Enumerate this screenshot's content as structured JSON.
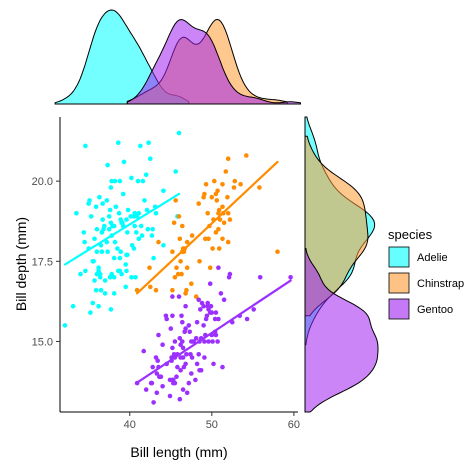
{
  "chart_data": {
    "type": "scatter",
    "xlabel": "Bill length (mm)",
    "ylabel": "Bill depth (mm)",
    "xlim": [
      31.5,
      60.5
    ],
    "ylim": [
      12.8,
      22.0
    ],
    "xticks": [
      "40",
      "50",
      "60"
    ],
    "yticks": [
      "15.0",
      "17.5",
      "20.0"
    ],
    "grid": false,
    "legend": {
      "title": "species",
      "position": "right"
    },
    "marginal_top": {
      "type": "density",
      "variable": "bill_length"
    },
    "marginal_right": {
      "type": "density",
      "variable": "bill_depth"
    },
    "series": [
      {
        "name": "Adelie",
        "color": "#00FFFF",
        "fill": "#00FFFF",
        "trend": {
          "x": [
            32.1,
            46.0
          ],
          "y": [
            17.4,
            19.6
          ]
        },
        "points": [
          [
            32.1,
            15.5
          ],
          [
            33.1,
            16.1
          ],
          [
            33.5,
            19.0
          ],
          [
            34.0,
            17.1
          ],
          [
            34.4,
            18.4
          ],
          [
            34.5,
            18.1
          ],
          [
            34.6,
            21.1
          ],
          [
            34.6,
            17.2
          ],
          [
            35.0,
            17.9
          ],
          [
            35.0,
            19.3
          ],
          [
            35.1,
            19.4
          ],
          [
            35.2,
            15.9
          ],
          [
            35.3,
            18.9
          ],
          [
            35.5,
            17.5
          ],
          [
            35.5,
            16.2
          ],
          [
            35.6,
            17.5
          ],
          [
            35.7,
            16.9
          ],
          [
            35.7,
            18.2
          ],
          [
            35.9,
            16.6
          ],
          [
            35.9,
            19.2
          ],
          [
            36.0,
            17.1
          ],
          [
            36.0,
            18.5
          ],
          [
            36.0,
            17.8
          ],
          [
            36.2,
            17.2
          ],
          [
            36.2,
            16.1
          ],
          [
            36.2,
            17.3
          ],
          [
            36.3,
            19.5
          ],
          [
            36.4,
            17.0
          ],
          [
            36.4,
            17.1
          ],
          [
            36.5,
            16.6
          ],
          [
            36.5,
            18.0
          ],
          [
            36.6,
            17.8
          ],
          [
            36.6,
            18.4
          ],
          [
            36.7,
            19.3
          ],
          [
            36.7,
            18.8
          ],
          [
            36.8,
            18.5
          ],
          [
            36.9,
            18.6
          ],
          [
            37.0,
            16.9
          ],
          [
            37.0,
            16.5
          ],
          [
            37.2,
            18.1
          ],
          [
            37.2,
            19.4
          ],
          [
            37.3,
            17.8
          ],
          [
            37.3,
            20.5
          ],
          [
            37.5,
            18.9
          ],
          [
            37.5,
            18.5
          ],
          [
            37.6,
            19.1
          ],
          [
            37.6,
            17.0
          ],
          [
            37.7,
            18.7
          ],
          [
            37.7,
            16.0
          ],
          [
            37.7,
            19.8
          ],
          [
            37.8,
            18.3
          ],
          [
            37.8,
            17.1
          ],
          [
            37.8,
            20.0
          ],
          [
            37.9,
            18.6
          ],
          [
            37.9,
            18.6
          ],
          [
            38.1,
            18.6
          ],
          [
            38.1,
            17.6
          ],
          [
            38.1,
            16.5
          ],
          [
            38.1,
            17.0
          ],
          [
            38.2,
            18.1
          ],
          [
            38.2,
            20.0
          ],
          [
            38.3,
            19.2
          ],
          [
            38.5,
            17.9
          ],
          [
            38.6,
            21.2
          ],
          [
            38.6,
            17.2
          ],
          [
            38.7,
            19.0
          ],
          [
            38.8,
            17.2
          ],
          [
            38.8,
            17.6
          ],
          [
            38.8,
            20.0
          ],
          [
            38.9,
            17.8
          ],
          [
            38.9,
            18.8
          ],
          [
            39.0,
            17.1
          ],
          [
            39.0,
            18.7
          ],
          [
            39.1,
            18.7
          ],
          [
            39.2,
            19.6
          ],
          [
            39.2,
            18.6
          ],
          [
            39.3,
            20.6
          ],
          [
            39.5,
            16.7
          ],
          [
            39.5,
            17.4
          ],
          [
            39.6,
            17.7
          ],
          [
            39.6,
            18.8
          ],
          [
            39.6,
            17.2
          ],
          [
            39.7,
            18.4
          ],
          [
            39.7,
            17.7
          ],
          [
            39.8,
            19.1
          ],
          [
            40.1,
            18.9
          ],
          [
            40.2,
            17.0
          ],
          [
            40.2,
            20.1
          ],
          [
            40.3,
            18.0
          ],
          [
            40.5,
            17.9
          ],
          [
            40.5,
            18.9
          ],
          [
            40.6,
            18.6
          ],
          [
            40.6,
            19.0
          ],
          [
            40.7,
            17.0
          ],
          [
            40.8,
            18.4
          ],
          [
            40.9,
            18.9
          ],
          [
            40.9,
            16.6
          ],
          [
            41.0,
            20.0
          ],
          [
            41.1,
            19.0
          ],
          [
            41.1,
            18.2
          ],
          [
            41.3,
            21.1
          ],
          [
            41.4,
            18.6
          ],
          [
            41.5,
            18.3
          ],
          [
            41.6,
            20.0
          ],
          [
            41.8,
            19.4
          ],
          [
            42.0,
            20.2
          ],
          [
            42.1,
            19.1
          ],
          [
            42.2,
            18.5
          ],
          [
            42.3,
            21.2
          ],
          [
            42.5,
            20.7
          ],
          [
            42.7,
            18.3
          ],
          [
            42.8,
            18.5
          ],
          [
            42.9,
            17.6
          ],
          [
            43.1,
            19.2
          ],
          [
            43.2,
            19.0
          ],
          [
            44.1,
            18.0
          ],
          [
            44.1,
            19.7
          ],
          [
            45.6,
            20.3
          ],
          [
            45.8,
            18.9
          ],
          [
            46.0,
            21.5
          ]
        ]
      },
      {
        "name": "Chinstrap",
        "color": "#FF8C00",
        "fill": "#FF9A33",
        "trend": {
          "x": [
            40.9,
            58.0
          ],
          "y": [
            16.5,
            20.6
          ]
        },
        "points": [
          [
            40.9,
            16.6
          ],
          [
            42.4,
            17.3
          ],
          [
            42.5,
            16.7
          ],
          [
            43.2,
            16.6
          ],
          [
            43.5,
            18.1
          ],
          [
            45.2,
            16.6
          ],
          [
            45.2,
            17.8
          ],
          [
            45.4,
            18.7
          ],
          [
            45.5,
            17.0
          ],
          [
            45.6,
            19.4
          ],
          [
            45.7,
            17.3
          ],
          [
            45.9,
            17.1
          ],
          [
            46.0,
            18.9
          ],
          [
            46.1,
            18.2
          ],
          [
            46.2,
            17.5
          ],
          [
            46.4,
            17.8
          ],
          [
            46.4,
            18.6
          ],
          [
            46.5,
            17.9
          ],
          [
            46.6,
            17.8
          ],
          [
            46.7,
            17.9
          ],
          [
            46.8,
            16.5
          ],
          [
            46.9,
            16.6
          ],
          [
            47.0,
            17.3
          ],
          [
            47.5,
            16.8
          ],
          [
            47.6,
            18.3
          ],
          [
            48.1,
            16.4
          ],
          [
            48.5,
            17.5
          ],
          [
            49.0,
            19.5
          ],
          [
            49.2,
            18.2
          ],
          [
            49.3,
            19.9
          ],
          [
            49.5,
            19.0
          ],
          [
            49.6,
            18.2
          ],
          [
            49.7,
            18.6
          ],
          [
            49.8,
            17.3
          ],
          [
            50.0,
            19.5
          ],
          [
            50.1,
            17.9
          ],
          [
            50.2,
            18.8
          ],
          [
            50.3,
            20.0
          ],
          [
            50.5,
            19.6
          ],
          [
            50.5,
            18.4
          ],
          [
            50.6,
            19.4
          ],
          [
            50.7,
            19.7
          ],
          [
            50.8,
            19.0
          ],
          [
            50.8,
            18.5
          ],
          [
            50.9,
            19.1
          ],
          [
            50.9,
            17.9
          ],
          [
            51.0,
            18.8
          ],
          [
            51.3,
            19.2
          ],
          [
            51.3,
            18.2
          ],
          [
            51.3,
            19.9
          ],
          [
            51.4,
            19.0
          ],
          [
            51.5,
            18.7
          ],
          [
            51.7,
            20.3
          ],
          [
            51.9,
            19.5
          ],
          [
            52.0,
            18.1
          ],
          [
            52.0,
            19.0
          ],
          [
            52.0,
            20.7
          ],
          [
            52.2,
            18.8
          ],
          [
            52.7,
            19.8
          ],
          [
            52.8,
            20.0
          ],
          [
            53.5,
            19.9
          ],
          [
            54.2,
            20.8
          ],
          [
            55.8,
            19.8
          ],
          [
            58.0,
            17.8
          ],
          [
            46.3,
            17.1
          ],
          [
            48.4,
            19.3
          ],
          [
            47.0,
            18.1
          ],
          [
            49.1,
            19.6
          ]
        ]
      },
      {
        "name": "Gentoo",
        "color": "#9B30FF",
        "fill": "#A020F0",
        "trend": {
          "x": [
            40.8,
            59.6
          ],
          "y": [
            13.7,
            16.9
          ]
        },
        "points": [
          [
            40.9,
            13.7
          ],
          [
            41.7,
            14.7
          ],
          [
            42.0,
            13.5
          ],
          [
            42.6,
            13.7
          ],
          [
            42.7,
            13.7
          ],
          [
            42.8,
            14.2
          ],
          [
            42.9,
            13.1
          ],
          [
            43.2,
            14.5
          ],
          [
            43.3,
            13.4
          ],
          [
            43.3,
            14.0
          ],
          [
            43.4,
            14.4
          ],
          [
            43.5,
            14.2
          ],
          [
            43.5,
            15.2
          ],
          [
            43.6,
            13.9
          ],
          [
            43.8,
            13.9
          ],
          [
            44.0,
            13.6
          ],
          [
            44.4,
            15.8
          ],
          [
            44.5,
            14.3
          ],
          [
            44.5,
            15.7
          ],
          [
            44.9,
            13.8
          ],
          [
            44.9,
            13.3
          ],
          [
            45.0,
            15.4
          ],
          [
            45.1,
            14.5
          ],
          [
            45.1,
            14.4
          ],
          [
            45.2,
            13.8
          ],
          [
            45.2,
            14.8
          ],
          [
            45.2,
            16.4
          ],
          [
            45.2,
            15.8
          ],
          [
            45.3,
            13.7
          ],
          [
            45.3,
            13.8
          ],
          [
            45.4,
            14.6
          ],
          [
            45.5,
            13.7
          ],
          [
            45.5,
            14.5
          ],
          [
            45.5,
            15.0
          ],
          [
            45.7,
            13.9
          ],
          [
            45.8,
            14.6
          ],
          [
            45.8,
            14.2
          ],
          [
            46.1,
            13.2
          ],
          [
            46.1,
            15.1
          ],
          [
            46.2,
            14.5
          ],
          [
            46.2,
            14.1
          ],
          [
            46.2,
            14.9
          ],
          [
            46.3,
            15.8
          ],
          [
            46.4,
            15.6
          ],
          [
            46.4,
            15.0
          ],
          [
            46.5,
            13.5
          ],
          [
            46.5,
            14.5
          ],
          [
            46.5,
            14.8
          ],
          [
            46.6,
            14.2
          ],
          [
            46.7,
            15.3
          ],
          [
            46.8,
            15.4
          ],
          [
            46.8,
            14.3
          ],
          [
            46.8,
            16.1
          ],
          [
            46.9,
            14.6
          ],
          [
            47.2,
            13.7
          ],
          [
            47.2,
            15.5
          ],
          [
            47.3,
            15.3
          ],
          [
            47.4,
            14.6
          ],
          [
            47.5,
            14.0
          ],
          [
            47.5,
            15.0
          ],
          [
            47.6,
            14.5
          ],
          [
            47.7,
            15.0
          ],
          [
            47.8,
            15.0
          ],
          [
            48.1,
            15.1
          ],
          [
            48.2,
            14.3
          ],
          [
            48.2,
            15.6
          ],
          [
            48.4,
            14.6
          ],
          [
            48.4,
            16.3
          ],
          [
            48.5,
            14.1
          ],
          [
            48.5,
            15.0
          ],
          [
            48.6,
            16.0
          ],
          [
            48.7,
            14.1
          ],
          [
            48.7,
            15.1
          ],
          [
            48.8,
            16.2
          ],
          [
            49.0,
            16.1
          ],
          [
            49.1,
            14.5
          ],
          [
            49.1,
            15.0
          ],
          [
            49.2,
            15.2
          ],
          [
            49.3,
            15.7
          ],
          [
            49.4,
            15.8
          ],
          [
            49.5,
            16.2
          ],
          [
            49.5,
            16.1
          ],
          [
            49.6,
            16.0
          ],
          [
            49.6,
            15.0
          ],
          [
            49.8,
            15.9
          ],
          [
            49.8,
            16.8
          ],
          [
            49.9,
            16.1
          ],
          [
            50.0,
            15.2
          ],
          [
            50.0,
            15.9
          ],
          [
            50.1,
            15.0
          ],
          [
            50.2,
            14.3
          ],
          [
            50.4,
            15.3
          ],
          [
            50.4,
            15.7
          ],
          [
            50.5,
            15.2
          ],
          [
            50.5,
            15.9
          ],
          [
            50.7,
            15.0
          ],
          [
            50.8,
            15.7
          ],
          [
            50.8,
            17.3
          ],
          [
            51.1,
            16.5
          ],
          [
            51.3,
            14.2
          ],
          [
            51.5,
            16.3
          ],
          [
            52.1,
            17.0
          ],
          [
            52.2,
            17.1
          ],
          [
            52.5,
            15.6
          ],
          [
            53.4,
            15.8
          ],
          [
            54.3,
            15.7
          ],
          [
            55.1,
            16.0
          ],
          [
            55.9,
            17.0
          ],
          [
            59.6,
            17.0
          ],
          [
            47.0,
            13.4
          ],
          [
            44.0,
            14.9
          ],
          [
            48.0,
            13.8
          ],
          [
            46.0,
            16.4
          ],
          [
            49.0,
            15.5
          ]
        ]
      }
    ]
  }
}
